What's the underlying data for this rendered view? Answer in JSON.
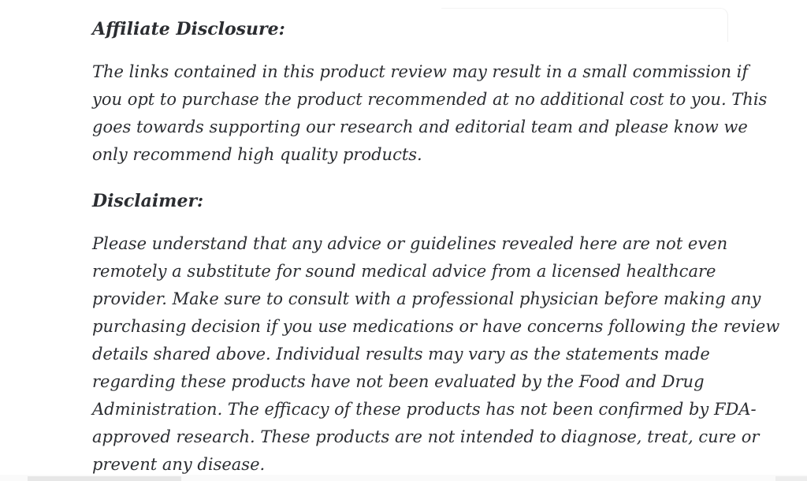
{
  "page": {
    "background_color": "#ffffff",
    "text_color": "#2b2d31",
    "bottom_edge_color": "#e7e7e7"
  },
  "content": {
    "blocks": [
      {
        "type": "heading",
        "text": "Affiliate Disclosure:"
      },
      {
        "type": "paragraph",
        "lines": [
          "The links contained in this product review may result in a small commission if",
          "you opt to purchase the product recommended at no additional cost to you. This",
          "goes towards supporting our research and editorial team and please know we",
          "only recommend high quality products."
        ]
      },
      {
        "type": "heading",
        "text": "Disclaimer:"
      },
      {
        "type": "paragraph",
        "lines": [
          "Please understand that any advice or guidelines revealed here are not even",
          "remotely a substitute for sound medical advice from a licensed healthcare",
          "provider. Make sure to consult with a professional physician before making any",
          "purchasing decision if you use medications or have concerns following the review",
          "details shared above. Individual results may vary as the statements made",
          "regarding these products have not been evaluated by the Food and Drug",
          "Administration. The efficacy of these products has not been confirmed by FDA-",
          "approved research. These products are not intended to diagnose, treat, cure or",
          "prevent any disease."
        ]
      }
    ]
  }
}
